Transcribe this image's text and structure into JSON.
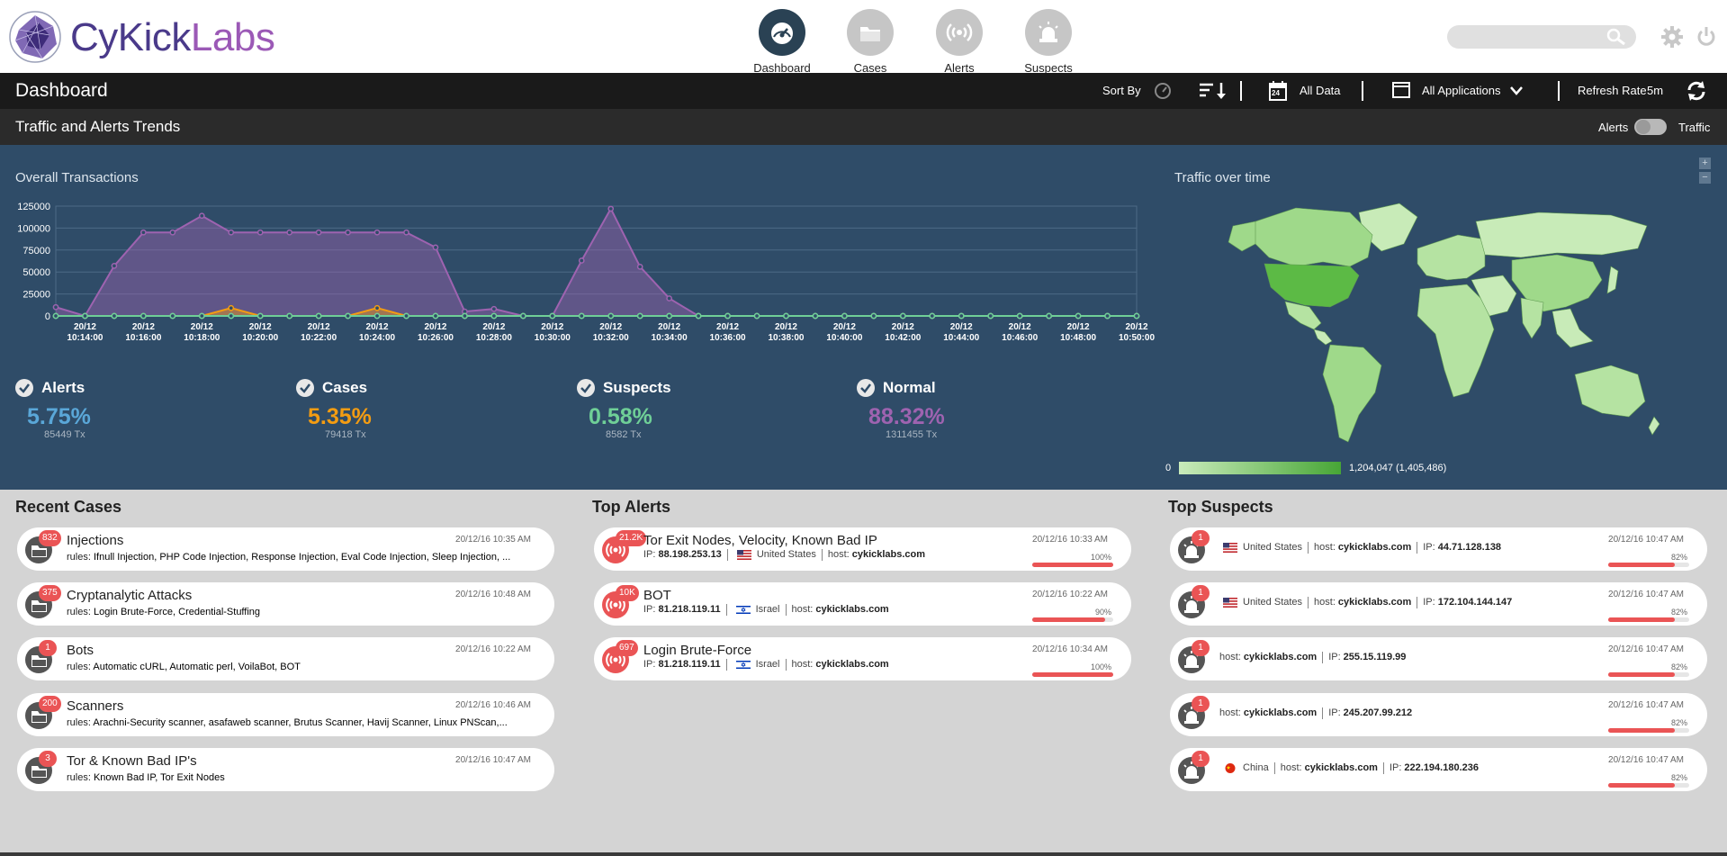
{
  "brand": {
    "part1": "CyKick",
    "part2": "Labs"
  },
  "nav": [
    {
      "label": "Dashboard",
      "icon": "gauge-icon",
      "active": true
    },
    {
      "label": "Cases",
      "icon": "folder-icon",
      "active": false
    },
    {
      "label": "Alerts",
      "icon": "broadcast-icon",
      "active": false
    },
    {
      "label": "Suspects",
      "icon": "siren-icon",
      "active": false
    }
  ],
  "header": {
    "search_placeholder": ""
  },
  "toolbar": {
    "title": "Dashboard",
    "sort_by": "Sort By",
    "calendar_day": "24",
    "all_data": "All Data",
    "all_applications": "All Applications",
    "refresh_rate": "Refresh Rate",
    "refresh_value": "5m"
  },
  "section": {
    "title": "Traffic and Alerts Trends",
    "toggle_left": "Alerts",
    "toggle_right": "Traffic"
  },
  "chart_data": {
    "type": "area",
    "title": "Overall Transactions",
    "x": [
      "20/12 10:13:00",
      "20/12 10:14:00",
      "20/12 10:15:00",
      "20/12 10:16:00",
      "20/12 10:17:00",
      "20/12 10:18:00",
      "20/12 10:19:00",
      "20/12 10:20:00",
      "20/12 10:21:00",
      "20/12 10:22:00",
      "20/12 10:23:00",
      "20/12 10:24:00",
      "20/12 10:25:00",
      "20/12 10:26:00",
      "20/12 10:27:00",
      "20/12 10:28:00",
      "20/12 10:29:00",
      "20/12 10:30:00",
      "20/12 10:31:00",
      "20/12 10:32:00",
      "20/12 10:33:00",
      "20/12 10:34:00",
      "20/12 10:35:00",
      "20/12 10:36:00",
      "20/12 10:37:00",
      "20/12 10:38:00",
      "20/12 10:39:00",
      "20/12 10:40:00",
      "20/12 10:41:00",
      "20/12 10:42:00",
      "20/12 10:43:00",
      "20/12 10:44:00",
      "20/12 10:45:00",
      "20/12 10:46:00",
      "20/12 10:47:00",
      "20/12 10:48:00",
      "20/12 10:49:00",
      "20/12 10:50:00"
    ],
    "x_tick_labels": [
      [
        "20/12",
        "10:14:00"
      ],
      [
        "20/12",
        "10:16:00"
      ],
      [
        "20/12",
        "10:18:00"
      ],
      [
        "20/12",
        "10:20:00"
      ],
      [
        "20/12",
        "10:22:00"
      ],
      [
        "20/12",
        "10:24:00"
      ],
      [
        "20/12",
        "10:26:00"
      ],
      [
        "20/12",
        "10:28:00"
      ],
      [
        "20/12",
        "10:30:00"
      ],
      [
        "20/12",
        "10:32:00"
      ],
      [
        "20/12",
        "10:34:00"
      ],
      [
        "20/12",
        "10:36:00"
      ],
      [
        "20/12",
        "10:38:00"
      ],
      [
        "20/12",
        "10:40:00"
      ],
      [
        "20/12",
        "10:42:00"
      ],
      [
        "20/12",
        "10:44:00"
      ],
      [
        "20/12",
        "10:46:00"
      ],
      [
        "20/12",
        "10:48:00"
      ],
      [
        "20/12",
        "10:50:00"
      ]
    ],
    "y_ticks": [
      "0",
      "25000",
      "50000",
      "75000",
      "100000",
      "125000"
    ],
    "ylim": [
      0,
      125000
    ],
    "grid": true,
    "series": [
      {
        "name": "Normal",
        "color": "#9e63b0",
        "values": [
          10000,
          0,
          57000,
          95000,
          95000,
          114000,
          95000,
          95000,
          95000,
          95000,
          95000,
          95000,
          95000,
          78000,
          5000,
          8000,
          0,
          0,
          63000,
          122000,
          56000,
          20000,
          0,
          0,
          0,
          0,
          0,
          0,
          0,
          0,
          0,
          0,
          0,
          0,
          0,
          0,
          0,
          0
        ]
      },
      {
        "name": "Cases",
        "color": "#f39c12",
        "values": [
          0,
          0,
          0,
          0,
          0,
          0,
          9000,
          0,
          0,
          0,
          0,
          9000,
          0,
          0,
          0,
          0,
          0,
          0,
          0,
          0,
          0,
          0,
          0,
          0,
          0,
          0,
          0,
          0,
          0,
          0,
          0,
          0,
          0,
          0,
          0,
          0,
          0,
          0
        ]
      },
      {
        "name": "Alerts",
        "color": "#5aa7d8",
        "values": [
          0,
          0,
          0,
          0,
          0,
          0,
          0,
          0,
          0,
          0,
          0,
          0,
          0,
          0,
          0,
          0,
          0,
          0,
          0,
          0,
          0,
          0,
          0,
          0,
          0,
          0,
          0,
          0,
          0,
          0,
          0,
          0,
          0,
          0,
          0,
          0,
          0,
          0
        ]
      },
      {
        "name": "Suspects",
        "color": "#6fcf97",
        "values": [
          0,
          0,
          0,
          0,
          0,
          0,
          0,
          0,
          0,
          0,
          0,
          0,
          0,
          0,
          0,
          0,
          0,
          0,
          0,
          0,
          0,
          0,
          0,
          0,
          0,
          0,
          0,
          0,
          0,
          0,
          0,
          0,
          0,
          0,
          0,
          0,
          0,
          0
        ]
      }
    ]
  },
  "stats": [
    {
      "name": "Alerts",
      "pct": "5.75%",
      "tx": "85449 Tx",
      "color": "#5aa7d8"
    },
    {
      "name": "Cases",
      "pct": "5.35%",
      "tx": "79418 Tx",
      "color": "#f39c12"
    },
    {
      "name": "Suspects",
      "pct": "0.58%",
      "tx": "8582 Tx",
      "color": "#6fcf97"
    },
    {
      "name": "Normal",
      "pct": "88.32%",
      "tx": "1311455 Tx",
      "color": "#9e63b0"
    }
  ],
  "map": {
    "title": "Traffic over time",
    "zoom_in": "+",
    "zoom_out": "−",
    "legend_min": "0",
    "legend_max": "1,204,047 (1,405,486)"
  },
  "recent_cases": {
    "title": "Recent Cases",
    "items": [
      {
        "badge": "832",
        "title": "Injections",
        "rules_label": "rules:",
        "rules": "Ifnull Injection, PHP Code Injection, Response Injection, Eval Code Injection, Sleep Injection, ...",
        "ts": "20/12/16 10:35 AM"
      },
      {
        "badge": "375",
        "title": "Cryptanalytic Attacks",
        "rules_label": "rules:",
        "rules": "Login Brute-Force, Credential-Stuffing",
        "ts": "20/12/16 10:48 AM"
      },
      {
        "badge": "1",
        "title": "Bots",
        "rules_label": "rules:",
        "rules": "Automatic cURL, Automatic perl, VoilaBot, BOT",
        "ts": "20/12/16 10:22 AM"
      },
      {
        "badge": "200",
        "title": "Scanners",
        "rules_label": "rules:",
        "rules": "Arachni-Security scanner, asafaweb scanner, Brutus Scanner, Havij Scanner, Linux PNScan,...",
        "ts": "20/12/16 10:46 AM"
      },
      {
        "badge": "3",
        "title": "Tor & Known Bad IP's",
        "rules_label": "rules:",
        "rules": "Known Bad IP, Tor Exit Nodes",
        "ts": "20/12/16 10:47 AM"
      }
    ]
  },
  "top_alerts": {
    "title": "Top Alerts",
    "items": [
      {
        "badge": "21.2K",
        "title": "Tor Exit Nodes, Velocity, Known Bad IP",
        "ip_label": "IP:",
        "ip": "88.198.253.13",
        "flag": "us-flag-icon",
        "country": "United States",
        "host_label": "host:",
        "host": "cykicklabs.com",
        "ts": "20/12/16 10:33 AM",
        "pct": "100%",
        "level": 1.0
      },
      {
        "badge": "10K",
        "title": "BOT",
        "ip_label": "IP:",
        "ip": "81.218.119.11",
        "flag": "il-flag-icon",
        "country": "Israel",
        "host_label": "host:",
        "host": "cykicklabs.com",
        "ts": "20/12/16 10:22 AM",
        "pct": "90%",
        "level": 0.9
      },
      {
        "badge": "697",
        "title": "Login Brute-Force",
        "ip_label": "IP:",
        "ip": "81.218.119.11",
        "flag": "il-flag-icon",
        "country": "Israel",
        "host_label": "host:",
        "host": "cykicklabs.com",
        "ts": "20/12/16 10:34 AM",
        "pct": "100%",
        "level": 1.0
      }
    ]
  },
  "top_suspects": {
    "title": "Top Suspects",
    "items": [
      {
        "badge": "1",
        "flag": "us-flag-icon",
        "country": "United States",
        "host_label": "host:",
        "host": "cykicklabs.com",
        "ip_label": "IP:",
        "ip": "44.71.128.138",
        "ts": "20/12/16 10:47 AM",
        "pct": "82%",
        "level": 0.82
      },
      {
        "badge": "1",
        "flag": "us-flag-icon",
        "country": "United States",
        "host_label": "host:",
        "host": "cykicklabs.com",
        "ip_label": "IP:",
        "ip": "172.104.144.147",
        "ts": "20/12/16 10:47 AM",
        "pct": "82%",
        "level": 0.82
      },
      {
        "badge": "1",
        "flag": "",
        "country": "",
        "host_label": "host:",
        "host": "cykicklabs.com",
        "ip_label": "IP:",
        "ip": "255.15.119.99",
        "ts": "20/12/16 10:47 AM",
        "pct": "82%",
        "level": 0.82
      },
      {
        "badge": "1",
        "flag": "",
        "country": "",
        "host_label": "host:",
        "host": "cykicklabs.com",
        "ip_label": "IP:",
        "ip": "245.207.99.212",
        "ts": "20/12/16 10:47 AM",
        "pct": "82%",
        "level": 0.82
      },
      {
        "badge": "1",
        "flag": "cn-flag-icon",
        "country": "China",
        "host_label": "host:",
        "host": "cykicklabs.com",
        "ip_label": "IP:",
        "ip": "222.194.180.236",
        "ts": "20/12/16 10:47 AM",
        "pct": "82%",
        "level": 0.82
      }
    ]
  }
}
